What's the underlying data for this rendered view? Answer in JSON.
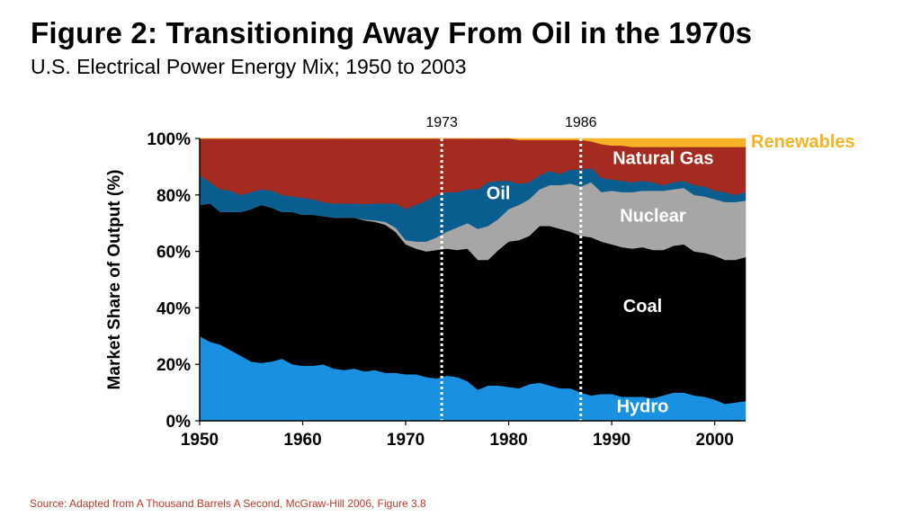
{
  "title": "Figure 2: Transitioning Away From Oil in the 1970s",
  "subtitle": "U.S. Electrical Power Energy Mix; 1950 to 2003",
  "source": "Source: Adapted from A Thousand Barrels A Second, McGraw-Hill 2006, Figure 3.8",
  "chart_data": {
    "type": "area",
    "stacked": true,
    "ylabel": "Market Share of Output (%)",
    "xlim": [
      1950,
      2003
    ],
    "ylim": [
      0,
      100
    ],
    "x_ticks": [
      "1950",
      "1960",
      "1970",
      "1980",
      "1990",
      "2000"
    ],
    "y_ticks": [
      "0%",
      "20%",
      "40%",
      "60%",
      "80%",
      "100%"
    ],
    "markers": [
      {
        "label": "1973",
        "x": 1973.5
      },
      {
        "label": "1986",
        "x": 1987
      }
    ],
    "x": [
      1950,
      1951,
      1952,
      1953,
      1954,
      1955,
      1956,
      1957,
      1958,
      1959,
      1960,
      1961,
      1962,
      1963,
      1964,
      1965,
      1966,
      1967,
      1968,
      1969,
      1970,
      1971,
      1972,
      1973,
      1974,
      1975,
      1976,
      1977,
      1978,
      1979,
      1980,
      1981,
      1982,
      1983,
      1984,
      1985,
      1986,
      1987,
      1988,
      1989,
      1990,
      1991,
      1992,
      1993,
      1994,
      1995,
      1996,
      1997,
      1998,
      1999,
      2000,
      2001,
      2002,
      2003
    ],
    "series": [
      {
        "name": "Hydro",
        "color": "#1a90e0",
        "values": [
          30,
          28,
          27,
          25,
          23,
          21,
          20.5,
          21,
          22,
          20,
          19.5,
          19.5,
          20,
          18.5,
          18,
          18.5,
          17.5,
          18,
          17,
          17,
          16.5,
          16.5,
          15.5,
          15,
          16,
          15.5,
          14,
          11,
          12.5,
          12.5,
          12,
          11.5,
          13,
          13.5,
          12.5,
          11.5,
          11.5,
          10,
          9,
          9.5,
          9.5,
          8.5,
          8.5,
          8.5,
          8,
          9,
          10,
          10,
          9,
          8.5,
          7.5,
          6,
          6.5,
          7
        ]
      },
      {
        "name": "Coal",
        "color": "#000000",
        "values": [
          46.5,
          49,
          47,
          49,
          51,
          54,
          56,
          54.5,
          52,
          54,
          53.5,
          53.5,
          52.5,
          53.5,
          54,
          53.5,
          53.5,
          52.5,
          52.5,
          50,
          46,
          44.5,
          44.5,
          45.5,
          45,
          45,
          47,
          46,
          44.5,
          48,
          51.5,
          52.5,
          52.5,
          55.5,
          56.5,
          56.5,
          55.5,
          55.5,
          56,
          54,
          53,
          53,
          52.5,
          53,
          52.5,
          51.5,
          52,
          52.5,
          51,
          51,
          51,
          51,
          50.5,
          51
        ]
      },
      {
        "name": "Nuclear",
        "color": "#a6a6a6",
        "values": [
          0,
          0,
          0,
          0,
          0,
          0,
          0,
          0,
          0,
          0,
          0,
          0,
          0,
          0,
          0,
          0,
          0.3,
          0.5,
          1,
          1.5,
          1.5,
          2.5,
          3.5,
          4.5,
          6,
          8,
          9,
          11,
          12,
          11,
          11.5,
          12.5,
          13,
          13,
          14.5,
          15.5,
          17,
          17.5,
          19.5,
          17.5,
          19,
          19.5,
          20,
          20,
          21,
          21,
          20,
          20,
          20,
          20,
          20,
          20.5,
          20.5,
          20
        ]
      },
      {
        "name": "Oil",
        "color": "#0a5d8f",
        "values": [
          10.5,
          7.5,
          8,
          7.5,
          6,
          6,
          5.5,
          6,
          6,
          5.5,
          6,
          5.5,
          5,
          5,
          5,
          5,
          5.5,
          6,
          6.5,
          8.5,
          11,
          13,
          14.5,
          15,
          14,
          12.5,
          12,
          14,
          15.5,
          13.5,
          10,
          7.5,
          6,
          5,
          5,
          4,
          5,
          6,
          5,
          5,
          4,
          4,
          3.5,
          3.5,
          3,
          2,
          2.5,
          2.5,
          3.5,
          3.5,
          3,
          3.5,
          2.5,
          3
        ]
      },
      {
        "name": "Natural Gas",
        "color": "#a52a20",
        "values": [
          13,
          15.5,
          18,
          18.5,
          20,
          19,
          18,
          18.5,
          20,
          20.5,
          21,
          21.5,
          22.5,
          23,
          23,
          23,
          23.2,
          23,
          23,
          23,
          25,
          23.5,
          22,
          20,
          19,
          19,
          18,
          18,
          15.5,
          15,
          15,
          15.5,
          15,
          12.5,
          11,
          12,
          10.5,
          10.5,
          9.5,
          12,
          12,
          12.5,
          12.5,
          12,
          12.5,
          13.5,
          12.5,
          12,
          13.5,
          14,
          15.5,
          16,
          17,
          16
        ]
      },
      {
        "name": "Renewables",
        "color": "#f5b325",
        "values": [
          0,
          0,
          0,
          0,
          0,
          0,
          0,
          0,
          0,
          0,
          0,
          0,
          0,
          0,
          0,
          0,
          0,
          0,
          0,
          0,
          0,
          0,
          0,
          0,
          0,
          0,
          0,
          0,
          0,
          0,
          0,
          0.5,
          0.5,
          0.5,
          0.5,
          0.5,
          0.5,
          0.5,
          1,
          2,
          2.5,
          2.5,
          3,
          3,
          3,
          3,
          3,
          3,
          3,
          3,
          3,
          3,
          3,
          3
        ]
      }
    ]
  }
}
